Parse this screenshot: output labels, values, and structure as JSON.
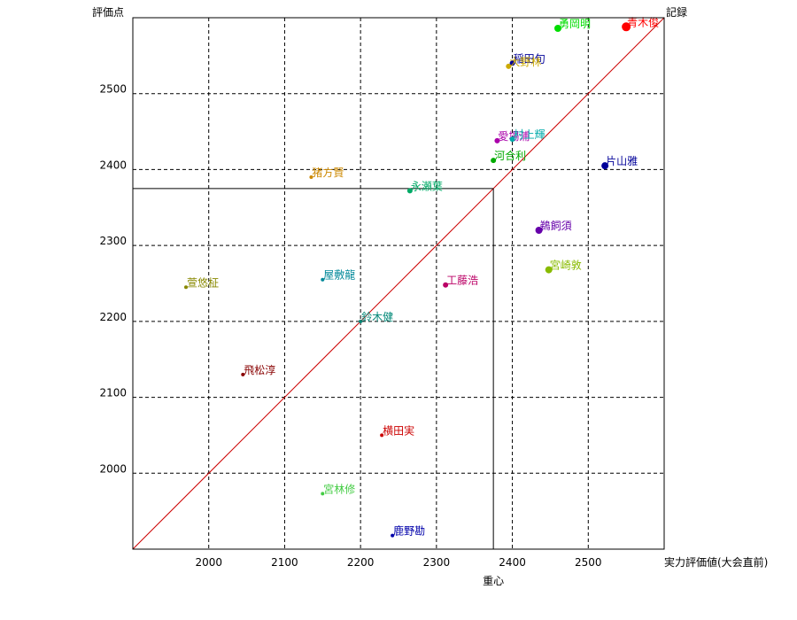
{
  "chart_data": {
    "type": "scatter",
    "title": "",
    "xlabel": "実力評価値(大会直前)",
    "ylabel": "評価点",
    "xlim": [
      1900,
      2600
    ],
    "ylim": [
      1900,
      2600
    ],
    "x_ticks": [
      2000,
      2100,
      2200,
      2300,
      2400,
      2500
    ],
    "y_ticks": [
      2000,
      2100,
      2200,
      2300,
      2400,
      2500
    ],
    "grid": true,
    "diagonal_label": "記録",
    "centroid": {
      "label": "重心",
      "x": 2375,
      "y": 2375
    },
    "points": [
      {
        "name": "青木俊",
        "x": 2550,
        "y": 2588,
        "color": "#ff0000",
        "size": 5
      },
      {
        "name": "勇岡明",
        "x": 2460,
        "y": 2586,
        "color": "#00dd00",
        "size": 4
      },
      {
        "name": "稲田旬",
        "x": 2400,
        "y": 2540,
        "color": "#000099",
        "size": 3
      },
      {
        "name": "大野林",
        "x": 2395,
        "y": 2536,
        "color": "#ccaa00",
        "size": 3
      },
      {
        "name": "愛場浦",
        "x": 2380,
        "y": 2438,
        "color": "#aa00aa",
        "size": 3
      },
      {
        "name": "村上輝",
        "x": 2400,
        "y": 2440,
        "color": "#00aaaa",
        "size": 3
      },
      {
        "name": "河合利",
        "x": 2375,
        "y": 2412,
        "color": "#00aa00",
        "size": 3
      },
      {
        "name": "片山雅",
        "x": 2522,
        "y": 2405,
        "color": "#000099",
        "size": 4
      },
      {
        "name": "猪方賢",
        "x": 2135,
        "y": 2390,
        "color": "#cc8800",
        "size": 2
      },
      {
        "name": "永瀬葉",
        "x": 2265,
        "y": 2372,
        "color": "#00aa66",
        "size": 3
      },
      {
        "name": "鵜飼須",
        "x": 2435,
        "y": 2320,
        "color": "#6600aa",
        "size": 4
      },
      {
        "name": "宮崎敦",
        "x": 2448,
        "y": 2268,
        "color": "#88bb00",
        "size": 4
      },
      {
        "name": "屋敷龍",
        "x": 2150,
        "y": 2255,
        "color": "#008899",
        "size": 2
      },
      {
        "name": "工藤浩",
        "x": 2312,
        "y": 2248,
        "color": "#bb0066",
        "size": 3
      },
      {
        "name": "萱悠柾",
        "x": 1970,
        "y": 2245,
        "color": "#888800",
        "size": 2
      },
      {
        "name": "鈴木健",
        "x": 2200,
        "y": 2200,
        "color": "#008877",
        "size": 2
      },
      {
        "name": "飛松淳",
        "x": 2045,
        "y": 2130,
        "color": "#880000",
        "size": 2
      },
      {
        "name": "横田実",
        "x": 2228,
        "y": 2050,
        "color": "#cc0000",
        "size": 2
      },
      {
        "name": "宮林修",
        "x": 2150,
        "y": 1973,
        "color": "#44cc44",
        "size": 2
      },
      {
        "name": "鹿野勘",
        "x": 2242,
        "y": 1918,
        "color": "#0000aa",
        "size": 2
      }
    ]
  }
}
